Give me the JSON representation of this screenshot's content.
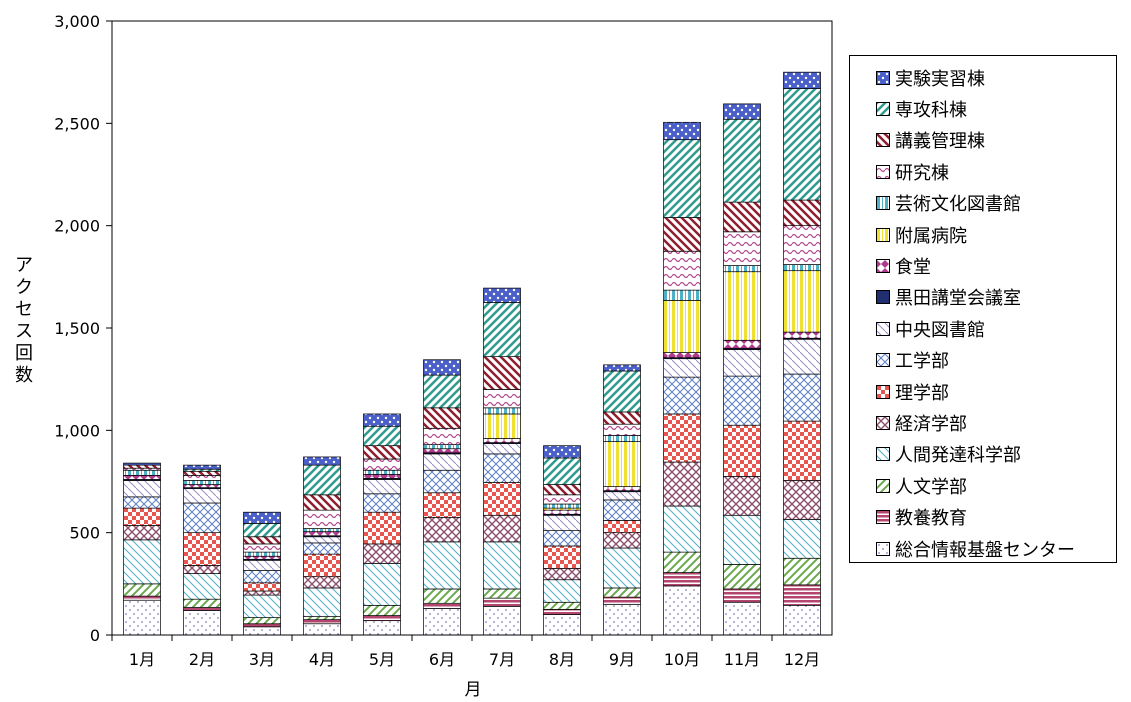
{
  "chart_data": {
    "type": "bar",
    "stacked": true,
    "categories": [
      "1月",
      "2月",
      "3月",
      "4月",
      "5月",
      "6月",
      "7月",
      "8月",
      "9月",
      "10月",
      "11月",
      "12月"
    ],
    "xlabel": "月",
    "ylabel": "アクセス回数",
    "ylim": [
      0,
      3000
    ],
    "yticks": [
      0,
      500,
      1000,
      1500,
      2000,
      2500,
      3000
    ],
    "ytick_labels": [
      "0",
      "500",
      "1,000",
      "1,500",
      "2,000",
      "2,500",
      "3,000"
    ],
    "legend_position": "right",
    "series": [
      {
        "name": "総合情報基盤センター",
        "color": "#7f7fbf",
        "pattern": "dots",
        "values": [
          170,
          120,
          40,
          55,
          70,
          130,
          140,
          100,
          150,
          240,
          160,
          145
        ]
      },
      {
        "name": "教養教育",
        "color": "#b3456e",
        "pattern": "hlines",
        "values": [
          20,
          15,
          15,
          20,
          25,
          25,
          40,
          25,
          35,
          65,
          65,
          100
        ]
      },
      {
        "name": "人文学部",
        "color": "#6aa84f",
        "pattern": "diag",
        "values": [
          60,
          40,
          30,
          15,
          50,
          70,
          45,
          35,
          45,
          100,
          120,
          130
        ]
      },
      {
        "name": "人間発達科学部",
        "color": "#4fb0c6",
        "pattern": "diag-back",
        "values": [
          215,
          125,
          110,
          140,
          205,
          230,
          230,
          110,
          195,
          225,
          240,
          190
        ]
      },
      {
        "name": "経済学部",
        "color": "#8e4f6e",
        "pattern": "crosshatch",
        "values": [
          70,
          40,
          20,
          55,
          95,
          120,
          130,
          55,
          75,
          215,
          190,
          190
        ]
      },
      {
        "name": "理学部",
        "color": "#e8574f",
        "pattern": "checker",
        "values": [
          85,
          160,
          40,
          110,
          155,
          120,
          160,
          110,
          60,
          235,
          250,
          290
        ]
      },
      {
        "name": "工学部",
        "color": "#5b7fc7",
        "pattern": "diag-cross",
        "values": [
          55,
          145,
          60,
          55,
          90,
          110,
          140,
          75,
          100,
          180,
          240,
          230
        ]
      },
      {
        "name": "中央図書館",
        "color": "#9b8fc7",
        "pattern": "diag-wide",
        "values": [
          80,
          70,
          50,
          30,
          70,
          80,
          50,
          75,
          40,
          90,
          130,
          170
        ]
      },
      {
        "name": "黒田講堂会議室",
        "color": "#1f2f6f",
        "pattern": "solid",
        "values": [
          5,
          5,
          5,
          5,
          5,
          5,
          5,
          5,
          5,
          5,
          5,
          5
        ]
      },
      {
        "name": "食堂",
        "color": "#b03a8e",
        "pattern": "bowtie",
        "values": [
          20,
          15,
          15,
          20,
          20,
          20,
          20,
          20,
          20,
          25,
          40,
          30
        ]
      },
      {
        "name": "附属病院",
        "color": "#f0e030",
        "pattern": "vlines",
        "values": [
          0,
          0,
          0,
          0,
          0,
          0,
          120,
          10,
          220,
          255,
          335,
          300
        ]
      },
      {
        "name": "芸術文化図書館",
        "color": "#4fb0c6",
        "pattern": "vlines",
        "values": [
          25,
          20,
          20,
          15,
          20,
          20,
          30,
          20,
          30,
          50,
          30,
          30
        ]
      },
      {
        "name": "研究棟",
        "color": "#b04a8e",
        "pattern": "wave",
        "values": [
          10,
          25,
          40,
          90,
          55,
          80,
          90,
          45,
          55,
          190,
          165,
          190
        ]
      },
      {
        "name": "講義管理棟",
        "color": "#8e1f2f",
        "pattern": "diag-thick",
        "values": [
          15,
          20,
          35,
          75,
          65,
          100,
          160,
          50,
          60,
          165,
          145,
          125
        ]
      },
      {
        "name": "専攻科棟",
        "color": "#2f9b8e",
        "pattern": "diag-thick-teal",
        "values": [
          0,
          10,
          65,
          145,
          95,
          160,
          265,
          130,
          200,
          380,
          405,
          545
        ]
      },
      {
        "name": "実験実習棟",
        "color": "#4a5fc7",
        "pattern": "dots-dense",
        "values": [
          10,
          20,
          55,
          40,
          60,
          75,
          70,
          60,
          30,
          85,
          75,
          80
        ]
      }
    ]
  }
}
